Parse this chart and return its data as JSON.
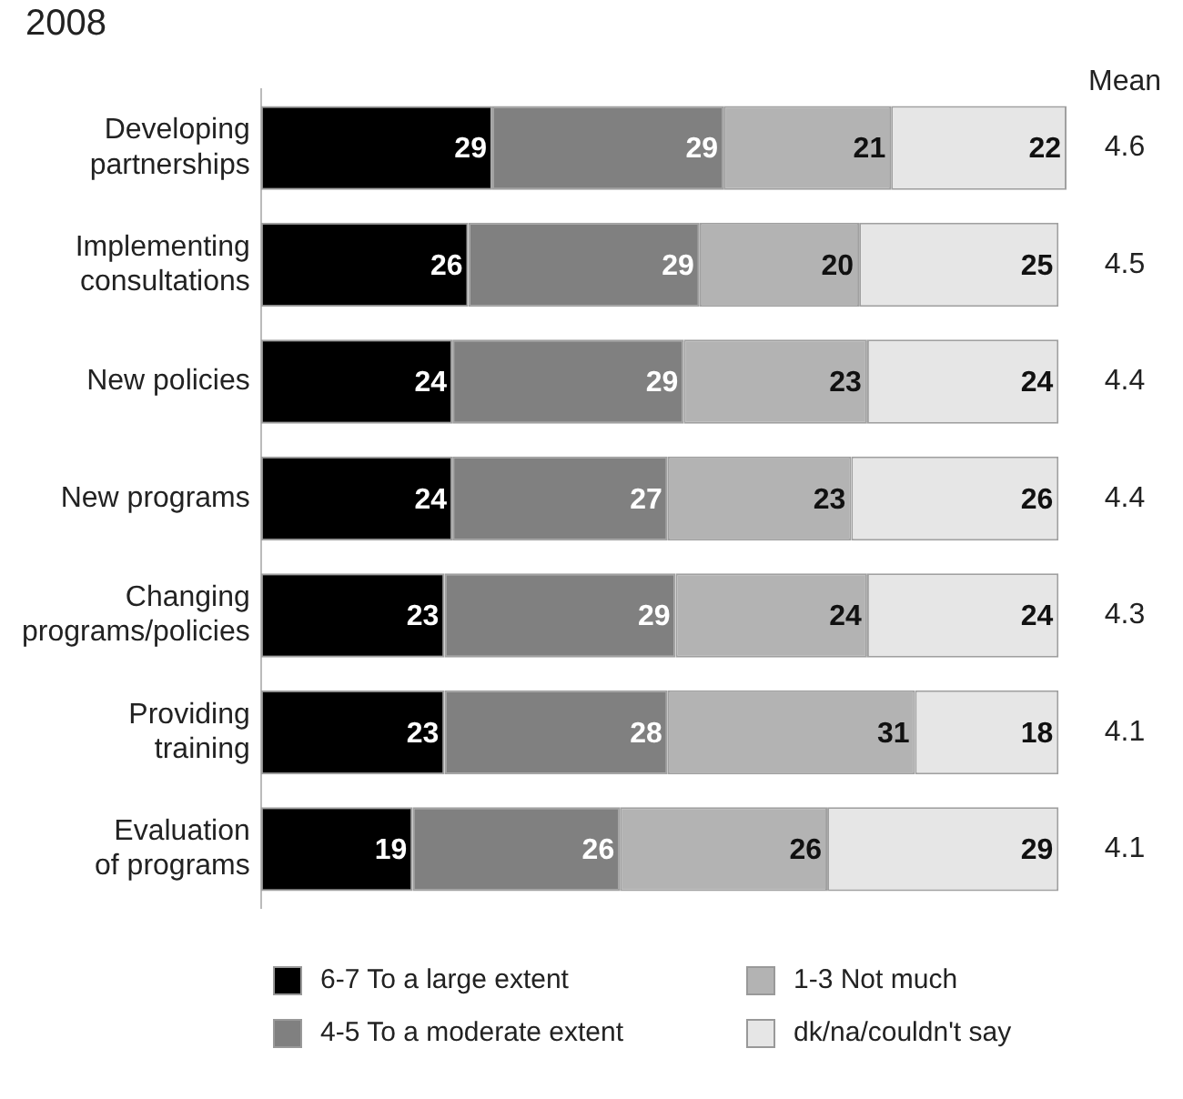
{
  "chart_data": {
    "type": "bar",
    "orientation": "horizontal",
    "stacked": true,
    "title": "2008",
    "categories": [
      "Developing partnerships",
      "Implementing consultations",
      "New policies",
      "New programs",
      "Changing programs/policies",
      "Providing training",
      "Evaluation of programs"
    ],
    "series": [
      {
        "name": "6-7 To a large extent",
        "color": "#000000",
        "values": [
          29,
          26,
          24,
          24,
          23,
          23,
          19
        ]
      },
      {
        "name": "4-5 To a moderate extent",
        "color": "#808080",
        "values": [
          29,
          29,
          29,
          27,
          29,
          28,
          26
        ]
      },
      {
        "name": "1-3 Not much",
        "color": "#b3b3b3",
        "values": [
          21,
          20,
          23,
          23,
          24,
          31,
          26
        ]
      },
      {
        "name": "dk/na/couldn't say",
        "color": "#e6e6e6",
        "values": [
          22,
          25,
          24,
          26,
          24,
          18,
          29
        ]
      }
    ],
    "data_labels": true,
    "legend": "bottom",
    "tick_labels": "y",
    "annotations": [
      "Mean",
      "4.6",
      "4.5",
      "4.4",
      "4.4",
      "4.3",
      "4.1",
      "4.1"
    ]
  }
}
